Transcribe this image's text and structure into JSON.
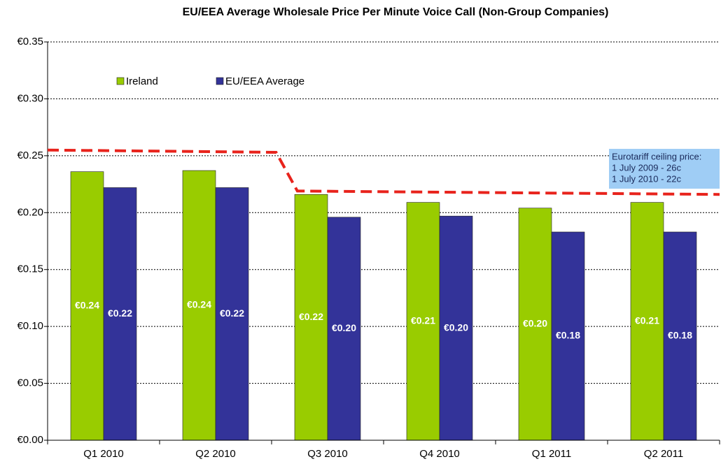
{
  "chart_data": {
    "type": "bar",
    "title": "EU/EEA Average Wholesale Price Per Minute Voice Call (Non-Group Companies)",
    "categories": [
      "Q1 2010",
      "Q2 2010",
      "Q3 2010",
      "Q4 2010",
      "Q1 2011",
      "Q2 2011"
    ],
    "series": [
      {
        "name": "Ireland",
        "color": "#99cc00",
        "values": [
          0.236,
          0.237,
          0.216,
          0.209,
          0.204,
          0.209
        ],
        "value_labels": [
          "€0.24",
          "€0.24",
          "€0.22",
          "€0.21",
          "€0.20",
          "€0.21"
        ]
      },
      {
        "name": "EU/EEA Average",
        "color": "#333399",
        "values": [
          0.222,
          0.222,
          0.196,
          0.197,
          0.183,
          0.183
        ],
        "value_labels": [
          "€0.22",
          "€0.22",
          "€0.20",
          "€0.20",
          "€0.18",
          "€0.18"
        ]
      }
    ],
    "ylim": [
      0,
      0.35
    ],
    "yticks": [
      {
        "value": 0,
        "label": "€0.00"
      },
      {
        "value": 0.05,
        "label": "€0.05"
      },
      {
        "value": 0.1,
        "label": "€0.10"
      },
      {
        "value": 0.15,
        "label": "€0.15"
      },
      {
        "value": 0.2,
        "label": "€0.20"
      },
      {
        "value": 0.25,
        "label": "€0.25"
      },
      {
        "value": 0.3,
        "label": "€0.30"
      },
      {
        "value": 0.35,
        "label": "€0.35"
      }
    ],
    "grid": true,
    "ceiling_line": {
      "color": "#e8231c",
      "x": [
        0,
        2.04,
        2.23,
        6
      ],
      "values": [
        0.255,
        0.253,
        0.219,
        0.216
      ]
    },
    "annotation": [
      "Eurotariff ceiling price:",
      "1 July 2009 - 26c",
      "1 July 2010 - 22c"
    ]
  }
}
